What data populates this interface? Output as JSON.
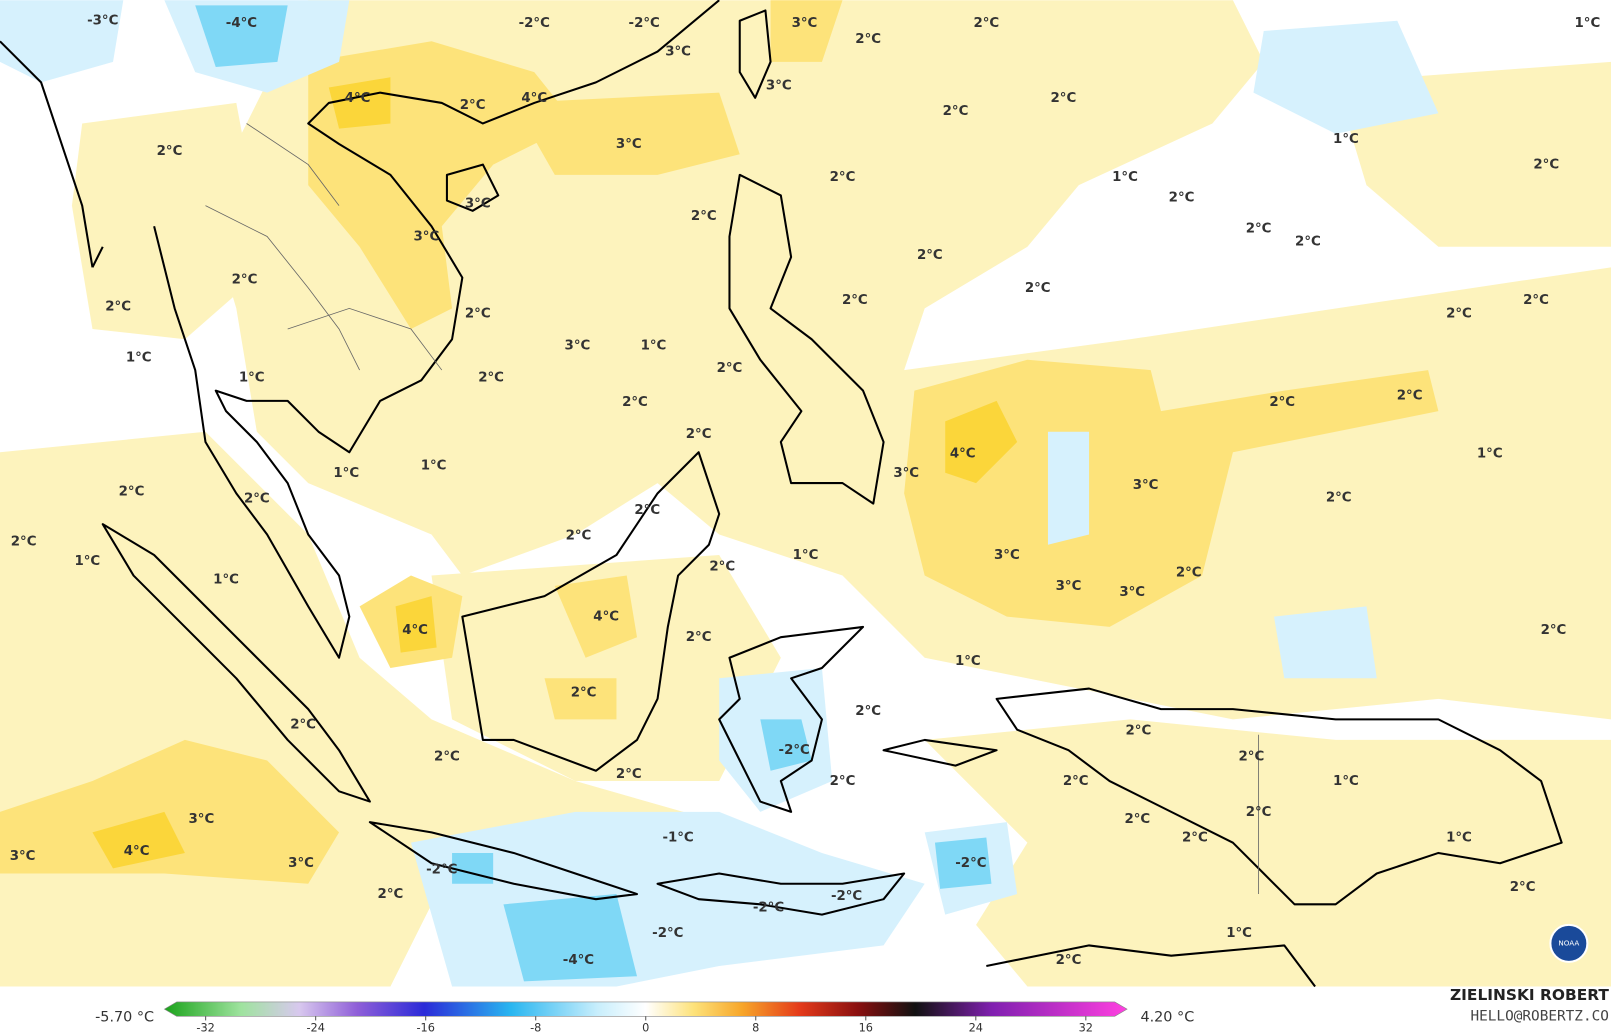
{
  "map": {
    "contour_labels": [
      "-3°C",
      "-4°C",
      "-2°C",
      "-2°C",
      "3°C",
      "2°C",
      "2°C",
      "1°C",
      "3°C",
      "3°C",
      "4°C",
      "2°C",
      "4°C",
      "2°C",
      "2°C",
      "3°C",
      "1°C",
      "2°C",
      "2°C",
      "1°C",
      "2°C",
      "2°C",
      "3°C",
      "2°C",
      "2°C",
      "2°C",
      "3°C",
      "2°C",
      "2°C",
      "2°C",
      "2°C",
      "2°C",
      "2°C",
      "2°C",
      "2°C",
      "3°C",
      "1°C",
      "1°C",
      "2°C",
      "1°C",
      "2°C",
      "2°C",
      "2°C",
      "2°C",
      "2°C",
      "4°C",
      "1°C",
      "3°C",
      "1°C",
      "1°C",
      "3°C",
      "2°C",
      "2°C",
      "2°C",
      "2°C",
      "2°C",
      "2°C",
      "1°C",
      "1°C",
      "3°C",
      "2°C",
      "2°C",
      "1°C",
      "3°C",
      "3°C",
      "4°C",
      "4°C",
      "2°C",
      "2°C",
      "1°C",
      "2°C",
      "2°C",
      "2°C",
      "2°C",
      "-2°C",
      "2°C",
      "2°C",
      "2°C",
      "2°C",
      "2°C",
      "1°C",
      "3°C",
      "2°C",
      "2°C",
      "-1°C",
      "2°C",
      "1°C",
      "3°C",
      "4°C",
      "3°C",
      "-2°C",
      "-2°C",
      "2°C",
      "-2°C",
      "-2°C",
      "2°C",
      "-2°C",
      "1°C",
      "-4°C",
      "2°C"
    ],
    "logo_text": "NOAA"
  },
  "colorbar": {
    "min_label": "-5.70 °C",
    "max_label": "4.20 °C",
    "range": [
      -35,
      35
    ],
    "ticks": [
      -32,
      -24,
      -16,
      -8,
      0,
      8,
      16,
      24,
      32
    ]
  },
  "credit": {
    "author": "ZIELINSKI ROBERT",
    "email": "HELLO@ROBERTZ.CO"
  }
}
